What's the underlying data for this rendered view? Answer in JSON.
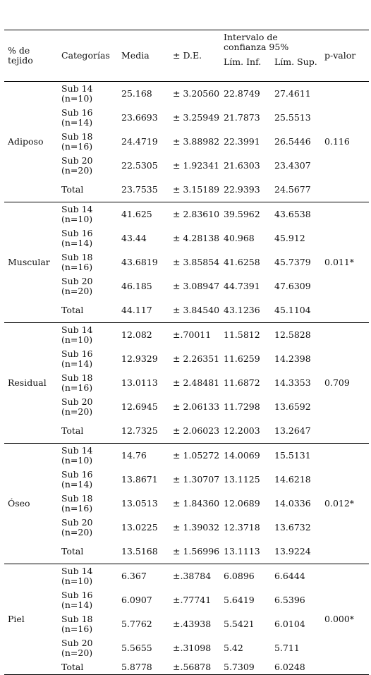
{
  "headers": {
    "tissue": "% de tejido",
    "categories": "Categorías",
    "mean": "Media",
    "sd": "± D.E.",
    "ci": "Intervalo de confianza 95%",
    "ci_lower": "Lím. Inf.",
    "ci_upper": "Lím. Sup.",
    "p_value": "p-valor"
  },
  "groups": [
    {
      "name": "Adiposo",
      "p_value": "0.116",
      "rows": [
        {
          "category": "Sub 14 (n=10)",
          "mean": "25.168",
          "sd": "± 3.20560",
          "lower": "22.8749",
          "upper": "27.4611"
        },
        {
          "category": "Sub 16 (n=14)",
          "mean": "23.6693",
          "sd": "± 3.25949",
          "lower": "21.7873",
          "upper": "25.5513"
        },
        {
          "category": "Sub 18 (n=16)",
          "mean": "24.4719",
          "sd": "± 3.88982",
          "lower": "22.3991",
          "upper": "26.5446"
        },
        {
          "category": "Sub 20 (n=20)",
          "mean": "22.5305",
          "sd": "± 1.92341",
          "lower": "21.6303",
          "upper": "23.4307"
        },
        {
          "category": "Total",
          "mean": "23.7535",
          "sd": "± 3.15189",
          "lower": "22.9393",
          "upper": "24.5677"
        }
      ]
    },
    {
      "name": "Muscular",
      "p_value": "0.011*",
      "rows": [
        {
          "category": "Sub 14 (n=10)",
          "mean": "41.625",
          "sd": "± 2.83610",
          "lower": "39.5962",
          "upper": "43.6538"
        },
        {
          "category": "Sub 16 (n=14)",
          "mean": "43.44",
          "sd": "± 4.28138",
          "lower": "40.968",
          "upper": "45.912"
        },
        {
          "category": "Sub 18 (n=16)",
          "mean": "43.6819",
          "sd": "± 3.85854",
          "lower": "41.6258",
          "upper": "45.7379"
        },
        {
          "category": "Sub 20 (n=20)",
          "mean": "46.185",
          "sd": "± 3.08947",
          "lower": "44.7391",
          "upper": "47.6309"
        },
        {
          "category": "Total",
          "mean": "44.117",
          "sd": "± 3.84540",
          "lower": "43.1236",
          "upper": "45.1104"
        }
      ]
    },
    {
      "name": "Residual",
      "p_value": "0.709",
      "rows": [
        {
          "category": "Sub 14 (n=10)",
          "mean": "12.082",
          "sd": "±.70011",
          "lower": "11.5812",
          "upper": "12.5828"
        },
        {
          "category": "Sub 16 (n=14)",
          "mean": "12.9329",
          "sd": "± 2.26351",
          "lower": "11.6259",
          "upper": "14.2398"
        },
        {
          "category": "Sub 18 (n=16)",
          "mean": "13.0113",
          "sd": "± 2.48481",
          "lower": "11.6872",
          "upper": "14.3353"
        },
        {
          "category": "Sub 20 (n=20)",
          "mean": "12.6945",
          "sd": "± 2.06133",
          "lower": "11.7298",
          "upper": "13.6592"
        },
        {
          "category": "Total",
          "mean": "12.7325",
          "sd": "± 2.06023",
          "lower": "12.2003",
          "upper": "13.2647"
        }
      ]
    },
    {
      "name": "Óseo",
      "p_value": "0.012*",
      "rows": [
        {
          "category": "Sub 14 (n=10)",
          "mean": "14.76",
          "sd": "± 1.05272",
          "lower": "14.0069",
          "upper": "15.5131"
        },
        {
          "category": "Sub 16 (n=14)",
          "mean": "13.8671",
          "sd": "± 1.30707",
          "lower": "13.1125",
          "upper": "14.6218"
        },
        {
          "category": "Sub 18 (n=16)",
          "mean": "13.0513",
          "sd": "± 1.84360",
          "lower": "12.0689",
          "upper": "14.0336"
        },
        {
          "category": "Sub 20 (n=20)",
          "mean": "13.0225",
          "sd": "± 1.39032",
          "lower": "12.3718",
          "upper": "13.6732"
        },
        {
          "category": "Total",
          "mean": "13.5168",
          "sd": "± 1.56996",
          "lower": "13.1113",
          "upper": "13.9224"
        }
      ]
    },
    {
      "name": "Piel",
      "p_value": "0.000*",
      "rows": [
        {
          "category": "Sub 14 (n=10)",
          "mean": "6.367",
          "sd": "±.38784",
          "lower": "6.0896",
          "upper": "6.6444"
        },
        {
          "category": "Sub 16 (n=14)",
          "mean": "6.0907",
          "sd": "±.77741",
          "lower": "5.6419",
          "upper": "6.5396"
        },
        {
          "category": "Sub 18 (n=16)",
          "mean": "5.7762",
          "sd": "±.43938",
          "lower": "5.5421",
          "upper": "6.0104"
        },
        {
          "category": "Sub 20 (n=20)",
          "mean": "5.5655",
          "sd": "±.31098",
          "lower": "5.42",
          "upper": "5.711"
        },
        {
          "category": "Total",
          "mean": "5.8778",
          "sd": "±.56878",
          "lower": "5.7309",
          "upper": "6.0248"
        }
      ]
    }
  ]
}
